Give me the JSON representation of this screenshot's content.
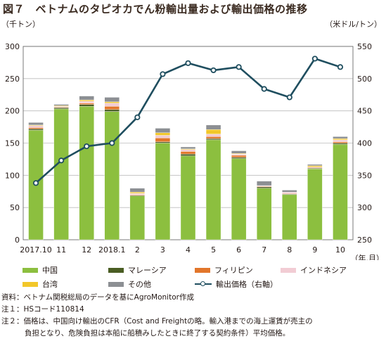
{
  "title": "図７　ベトナムのタピオカでん粉輸出量および輸出価格の推移",
  "unit_left": "（千トン）",
  "unit_right": "（米ドル/トン）",
  "x_unit": "（年.月）",
  "colors": {
    "china": "#8cbf3f",
    "malaysia": "#4a5d23",
    "philippines": "#e2762b",
    "indonesia": "#f2ccd4",
    "taiwan": "#f2c72a",
    "other": "#8c8f93",
    "price": "#1f4e5f"
  },
  "chart_data": {
    "type": "bar",
    "stacked": true,
    "categories": [
      "2017.10",
      "11",
      "12",
      "2018.1",
      "2",
      "3",
      "4",
      "5",
      "6",
      "7",
      "8",
      "9",
      "10"
    ],
    "series": [
      {
        "name": "中国",
        "values": [
          170,
          203,
          207,
          199,
          68,
          150,
          130,
          155,
          126,
          80,
          70,
          110,
          148
        ]
      },
      {
        "name": "マレーシア",
        "values": [
          2,
          2,
          3,
          3,
          1,
          2,
          3,
          2,
          2,
          2,
          1,
          1,
          2
        ]
      },
      {
        "name": "フィリピン",
        "values": [
          2,
          1,
          2,
          5,
          1,
          6,
          4,
          3,
          3,
          1,
          1,
          1,
          2
        ]
      },
      {
        "name": "インドネシア",
        "values": [
          3,
          1,
          3,
          5,
          2,
          4,
          3,
          4,
          2,
          1,
          2,
          1,
          3
        ]
      },
      {
        "name": "台湾",
        "values": [
          1,
          1,
          2,
          2,
          2,
          4,
          1,
          7,
          1,
          0,
          0,
          2,
          2
        ]
      },
      {
        "name": "その他",
        "values": [
          4,
          2,
          6,
          7,
          6,
          7,
          3,
          7,
          4,
          7,
          3,
          2,
          3
        ]
      }
    ],
    "line_series": {
      "name": "輸出価格（右軸）",
      "values": [
        338,
        373,
        395,
        400,
        440,
        507,
        524,
        513,
        518,
        484,
        471,
        531,
        518
      ]
    },
    "y_left": {
      "min": 0,
      "max": 300,
      "ticks": [
        0,
        50,
        100,
        150,
        200,
        250,
        300
      ]
    },
    "y_right": {
      "min": 250,
      "max": 550,
      "ticks": [
        250,
        300,
        350,
        400,
        450,
        500,
        550
      ]
    },
    "grid": true,
    "legend_position": "bottom"
  },
  "legend": {
    "china": "中国",
    "malaysia": "マレーシア",
    "philippines": "フィリピン",
    "indonesia": "インドネシア",
    "taiwan": "台湾",
    "other": "その他",
    "price": "輸出価格（右軸）"
  },
  "notes": {
    "source_label": "資料：",
    "source_text": "ベトナム関税総局のデータを基にAgroMonitor作成",
    "note1_label": "注１：",
    "note1_text": "HSコード110814",
    "note2_label": "注２：",
    "note2_text_1": "価格は、中国向け輸出のCFR（Cost and Freightの略。輸入港までの海上運賃が売主の",
    "note2_text_2": "負担となり、危険負担は本船に船積みしたときに終了する契約条件）平均価格。"
  }
}
